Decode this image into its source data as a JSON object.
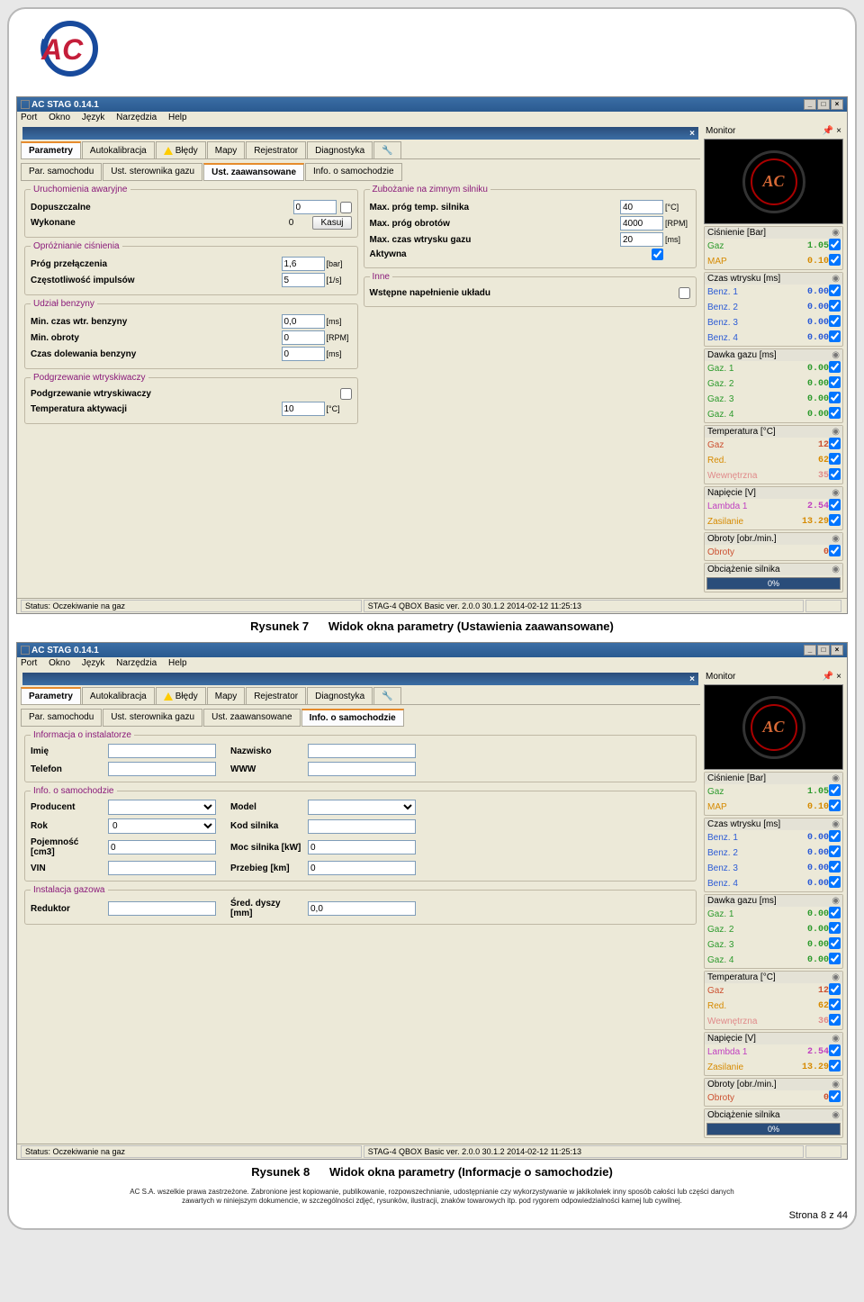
{
  "app": {
    "title": "AC STAG 0.14.1",
    "menus": [
      "Port",
      "Okno",
      "Język",
      "Narzędzia",
      "Help"
    ]
  },
  "tabs_main": [
    "Parametry",
    "Autokalibracja",
    "Błędy",
    "Mapy",
    "Rejestrator",
    "Diagnostyka"
  ],
  "subtabs": [
    "Par. samochodu",
    "Ust. sterownika gazu",
    "Ust. zaawansowane",
    "Info. o samochodzie"
  ],
  "win7": {
    "groups": {
      "g1": {
        "title": "Uruchomienia awaryjne",
        "dopuszczalne_lbl": "Dopuszczalne",
        "dopuszczalne_val": "0",
        "wykonane_lbl": "Wykonane",
        "wykonane_val": "0",
        "kasuj": "Kasuj"
      },
      "g2": {
        "title": "Opróżnianie ciśnienia",
        "prog_lbl": "Próg przełączenia",
        "prog_val": "1,6",
        "prog_unit": "[bar]",
        "czest_lbl": "Częstotliwość impulsów",
        "czest_val": "5",
        "czest_unit": "[1/s]"
      },
      "g3": {
        "title": "Udział benzyny",
        "min_wtr_lbl": "Min. czas wtr. benzyny",
        "min_wtr_val": "0,0",
        "min_wtr_unit": "[ms]",
        "min_obr_lbl": "Min. obroty",
        "min_obr_val": "0",
        "min_obr_unit": "[RPM]",
        "dolew_lbl": "Czas dolewania benzyny",
        "dolew_val": "0",
        "dolew_unit": "[ms]"
      },
      "g4": {
        "title": "Podgrzewanie wtryskiwaczy",
        "pod_lbl": "Podgrzewanie wtryskiwaczy",
        "temp_lbl": "Temperatura aktywacji",
        "temp_val": "10",
        "temp_unit": "[°C]"
      },
      "g5": {
        "title": "Zubożanie na zimnym silniku",
        "maxtemp_lbl": "Max. próg temp. silnika",
        "maxtemp_val": "40",
        "maxtemp_unit": "[°C]",
        "maxobr_lbl": "Max. próg obrotów",
        "maxobr_val": "4000",
        "maxobr_unit": "[RPM]",
        "maxgaz_lbl": "Max. czas wtrysku gazu",
        "maxgaz_val": "20",
        "maxgaz_unit": "[ms]",
        "aktyw_lbl": "Aktywna"
      },
      "g6": {
        "title": "Inne",
        "wst_lbl": "Wstępne napełnienie układu"
      }
    },
    "status_left": "Status: Oczekiwanie na gaz",
    "status_mid": "STAG-4 QBOX Basic ver. 2.0.0 30.1.2  2014-02-12 11:25:13"
  },
  "caption7": {
    "a": "Rysunek 7",
    "b": "Widok okna parametry (Ustawienia zaawansowane)"
  },
  "win8": {
    "groups": {
      "g1": {
        "title": "Informacja o instalatorze",
        "imie": "Imię",
        "nazwisko": "Nazwisko",
        "tel": "Telefon",
        "www": "WWW"
      },
      "g2": {
        "title": "Info. o samochodzie",
        "producent": "Producent",
        "model": "Model",
        "rok": "Rok",
        "rok_val": "0",
        "kod": "Kod silnika",
        "poj": "Pojemność [cm3]",
        "poj_val": "0",
        "moc": "Moc silnika [kW]",
        "moc_val": "0",
        "vin": "VIN",
        "prz": "Przebieg [km]",
        "prz_val": "0"
      },
      "g3": {
        "title": "Instalacja gazowa",
        "red": "Reduktor",
        "dys": "Śred. dyszy [mm]",
        "dys_val": "0,0"
      }
    },
    "status_left": "Status: Oczekiwanie na gaz",
    "status_mid": "STAG-4 QBOX Basic ver. 2.0.0 30.1.2  2014-02-12 11:25:13"
  },
  "caption8": {
    "a": "Rysunek 8",
    "b": "Widok okna parametry (Informacje o samochodzie)"
  },
  "monitor": {
    "title": "Monitor",
    "logo": "AC",
    "groups": {
      "cisnienie": {
        "title": "Ciśnienie [Bar]",
        "rows": [
          [
            "Gaz",
            "1.05",
            "green"
          ],
          [
            "MAP",
            "0.10",
            "orange"
          ]
        ]
      },
      "czas": {
        "title": "Czas wtrysku [ms]",
        "rows": [
          [
            "Benz. 1",
            "0.00",
            "blue"
          ],
          [
            "Benz. 2",
            "0.00",
            "blue"
          ],
          [
            "Benz. 3",
            "0.00",
            "blue"
          ],
          [
            "Benz. 4",
            "0.00",
            "blue"
          ]
        ]
      },
      "dawka": {
        "title": "Dawka gazu [ms]",
        "rows": [
          [
            "Gaz. 1",
            "0.00",
            "green"
          ],
          [
            "Gaz. 2",
            "0.00",
            "green"
          ],
          [
            "Gaz. 3",
            "0.00",
            "green"
          ],
          [
            "Gaz. 4",
            "0.00",
            "green"
          ]
        ]
      },
      "temp": {
        "title": "Temperatura [°C]",
        "rows": [
          [
            "Gaz",
            "12",
            "red"
          ],
          [
            "Red.",
            "62",
            "orange"
          ],
          [
            "Wewnętrzna",
            "35",
            "salmon"
          ]
        ]
      },
      "temp8": {
        "title": "Temperatura [°C]",
        "rows": [
          [
            "Gaz",
            "12",
            "red"
          ],
          [
            "Red.",
            "62",
            "orange"
          ],
          [
            "Wewnętrzna",
            "36",
            "salmon"
          ]
        ]
      },
      "nap": {
        "title": "Napięcie [V]",
        "rows": [
          [
            "Lambda 1",
            "2.54",
            "magenta"
          ],
          [
            "Zasilanie",
            "13.29",
            "orange"
          ]
        ]
      },
      "obr": {
        "title": "Obroty [obr./min.]",
        "rows": [
          [
            "Obroty",
            "0",
            "red"
          ]
        ]
      },
      "obc": {
        "title": "Obciążenie silnika",
        "progress": "0%"
      }
    }
  },
  "footer": {
    "l1": "AC S.A. wszelkie prawa zastrzeżone. Zabronione jest kopiowanie, publikowanie, rozpowszechnianie, udostępnianie czy wykorzystywanie w jakikolwiek inny sposób całości lub części danych",
    "l2": "zawartych w niniejszym dokumencie, w szczególności zdjęć, rysunków, ilustracji, znaków towarowych itp. pod rygorem odpowiedzialności karnej lub cywilnej.",
    "page": "Strona 8  z 44"
  }
}
